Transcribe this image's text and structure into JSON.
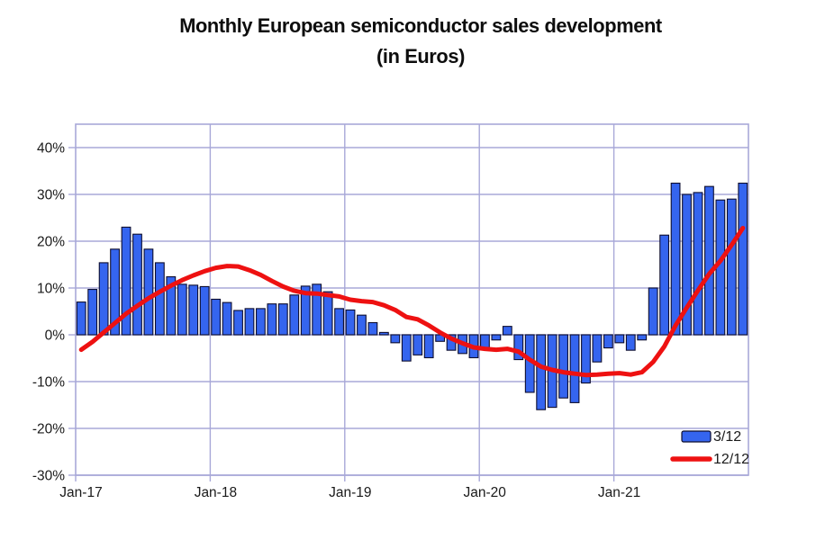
{
  "header": {
    "title": "Monthly European semiconductor sales development",
    "subtitle": "(in Euros)"
  },
  "colors": {
    "bar_fill": "#3565ef",
    "bar_border": "#0e0e2e",
    "line": "#ee1111",
    "grid": "#a8a8d8",
    "text": "#1a1a1a"
  },
  "chart_data": {
    "type": "bar",
    "title": "Monthly European semiconductor sales development",
    "subtitle": "(in Euros)",
    "grid": true,
    "legend_position": "bottom-right",
    "ylim": [
      -30,
      45
    ],
    "y_ticks": [
      {
        "value": 40,
        "label": "40%"
      },
      {
        "value": 30,
        "label": "30%"
      },
      {
        "value": 20,
        "label": "20%"
      },
      {
        "value": 10,
        "label": "10%"
      },
      {
        "value": 0,
        "label": "0%"
      },
      {
        "value": -10,
        "label": "-10%"
      },
      {
        "value": -20,
        "label": "-20%"
      },
      {
        "value": -30,
        "label": "-30%"
      }
    ],
    "x_ticks": [
      {
        "month_index": 0,
        "label": "Jan-17"
      },
      {
        "month_index": 12,
        "label": "Jan-18"
      },
      {
        "month_index": 24,
        "label": "Jan-19"
      },
      {
        "month_index": 36,
        "label": "Jan-20"
      },
      {
        "month_index": 48,
        "label": "Jan-21"
      }
    ],
    "categories": [
      "Jan-17",
      "Feb-17",
      "Mar-17",
      "Apr-17",
      "May-17",
      "Jun-17",
      "Jul-17",
      "Aug-17",
      "Sep-17",
      "Oct-17",
      "Nov-17",
      "Dec-17",
      "Jan-18",
      "Feb-18",
      "Mar-18",
      "Apr-18",
      "May-18",
      "Jun-18",
      "Jul-18",
      "Aug-18",
      "Sep-18",
      "Oct-18",
      "Nov-18",
      "Dec-18",
      "Jan-19",
      "Feb-19",
      "Mar-19",
      "Apr-19",
      "May-19",
      "Jun-19",
      "Jul-19",
      "Aug-19",
      "Sep-19",
      "Oct-19",
      "Nov-19",
      "Dec-19",
      "Jan-20",
      "Feb-20",
      "Mar-20",
      "Apr-20",
      "May-20",
      "Jun-20",
      "Jul-20",
      "Aug-20",
      "Sep-20",
      "Oct-20",
      "Nov-20",
      "Dec-20",
      "Jan-21",
      "Feb-21",
      "Mar-21",
      "Apr-21",
      "May-21",
      "Jun-21",
      "Jul-21",
      "Aug-21",
      "Sep-21",
      "Oct-21",
      "Nov-21",
      "Dec-21"
    ],
    "series": [
      {
        "name": "3/12",
        "type": "bar",
        "color": "#3565ef",
        "values": [
          7.0,
          9.7,
          15.4,
          18.3,
          23.0,
          21.5,
          18.3,
          15.4,
          12.4,
          10.8,
          10.6,
          10.3,
          7.6,
          6.9,
          5.2,
          5.6,
          5.6,
          6.6,
          6.6,
          8.5,
          10.4,
          10.8,
          9.2,
          5.6,
          5.3,
          4.2,
          2.6,
          0.5,
          -1.7,
          -5.6,
          -4.3,
          -4.9,
          -1.4,
          -3.3,
          -4.0,
          -4.9,
          -3.0,
          -1.1,
          1.8,
          -5.3,
          -12.3,
          -16.0,
          -15.5,
          -13.5,
          -14.5,
          -10.3,
          -5.8,
          -2.8,
          -1.7,
          -3.3,
          -1.1,
          10.0,
          21.3,
          32.4,
          30.0,
          30.4,
          31.7,
          28.8,
          29.0,
          32.4
        ]
      },
      {
        "name": "12/12",
        "type": "line",
        "color": "#ee1111",
        "values": [
          -3.2,
          -1.5,
          0.5,
          2.5,
          4.5,
          6.2,
          7.8,
          9.2,
          10.5,
          11.7,
          12.7,
          13.6,
          14.3,
          14.7,
          14.6,
          13.8,
          12.8,
          11.5,
          10.3,
          9.4,
          8.9,
          8.8,
          8.5,
          8.2,
          7.5,
          7.2,
          7.0,
          6.3,
          5.3,
          3.8,
          3.3,
          2.0,
          0.5,
          -0.8,
          -1.8,
          -2.7,
          -3.0,
          -3.2,
          -3.0,
          -3.6,
          -5.3,
          -6.8,
          -7.5,
          -8.0,
          -8.3,
          -8.6,
          -8.5,
          -8.3,
          -8.2,
          -8.5,
          -8.0,
          -5.8,
          -2.5,
          2.0,
          5.8,
          9.5,
          13.0,
          15.8,
          19.2,
          22.8
        ]
      }
    ]
  }
}
